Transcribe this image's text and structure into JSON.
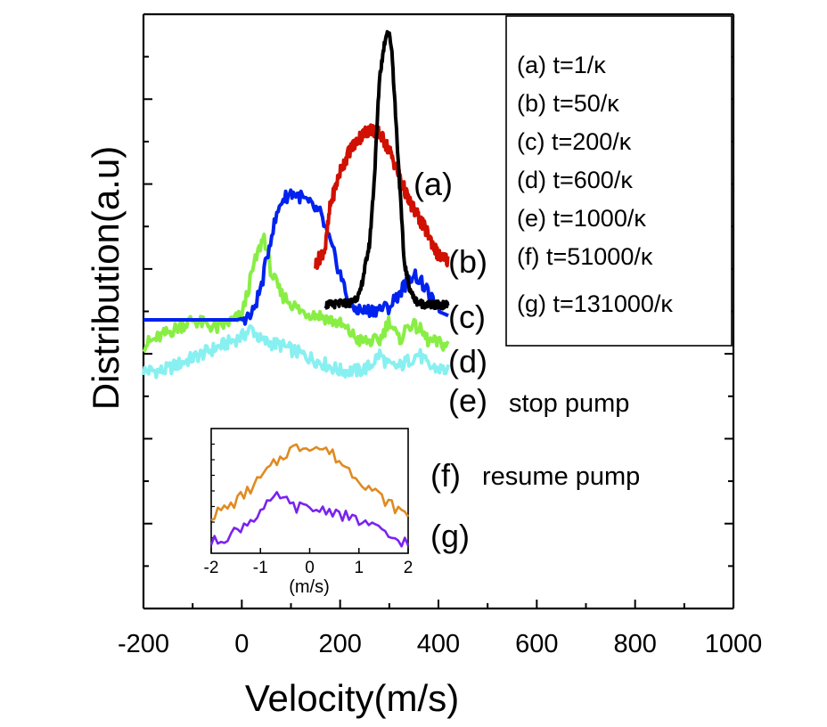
{
  "chart_data": {
    "type": "line",
    "title": "",
    "xlabel": "Velocity(m/s)",
    "ylabel": "Distribution(a.u)",
    "xlim": [
      -200,
      1000
    ],
    "xticks": [
      "-200",
      "0",
      "200",
      "400",
      "600",
      "800",
      "1000"
    ],
    "ylim": [
      0,
      14
    ],
    "grid": false,
    "legend_position": "top-right",
    "legend": [
      "(a) t=1/κ",
      "(b) t=50/κ",
      "(c) t=200/κ",
      "(d) t=600/κ",
      "(e) t=1000/κ",
      "(f)  t=51000/κ",
      "(g) t=131000/κ"
    ],
    "series": [
      {
        "id": "a",
        "name": "(a) t=1/κ",
        "color": "#000000",
        "tag": "(a)",
        "x": [
          170,
          220,
          240,
          260,
          270,
          280,
          290,
          295,
          300,
          305,
          310,
          320,
          330,
          340,
          350,
          360,
          380,
          400,
          420
        ],
        "y": [
          7.15,
          7.2,
          7.4,
          8.6,
          10.2,
          12.5,
          13.3,
          13.6,
          13.5,
          13.2,
          12.2,
          10.2,
          8.2,
          7.6,
          7.3,
          7.2,
          7.15,
          7.15,
          7.15
        ]
      },
      {
        "id": "b",
        "name": "(b) t=50/κ",
        "color": "#d01000",
        "tag": "(b)",
        "x": [
          150,
          170,
          180,
          200,
          220,
          240,
          260,
          280,
          300,
          320,
          340,
          360,
          380,
          400,
          420
        ],
        "y": [
          8.1,
          8.5,
          9.5,
          10.3,
          10.8,
          11.1,
          11.3,
          11.2,
          10.8,
          10.2,
          9.6,
          9.2,
          8.8,
          8.3,
          8.2
        ]
      },
      {
        "id": "c",
        "name": "(c) t=200/κ",
        "color": "#0022ee",
        "tag": "(c)",
        "x": [
          -200,
          -10,
          20,
          40,
          60,
          80,
          100,
          120,
          140,
          160,
          180,
          200,
          220,
          250,
          300,
          330,
          350,
          370,
          400,
          420
        ],
        "y": [
          6.8,
          6.8,
          6.9,
          7.6,
          8.8,
          9.6,
          9.8,
          9.7,
          9.5,
          9.3,
          8.6,
          7.9,
          7.1,
          7.0,
          7.1,
          7.6,
          7.9,
          7.6,
          7.0,
          6.9
        ]
      },
      {
        "id": "d",
        "name": "(d) t=600/κ",
        "color": "#88ee44",
        "tag": "(d)",
        "x": [
          -200,
          -150,
          -100,
          -50,
          0,
          25,
          45,
          60,
          80,
          120,
          160,
          200,
          240,
          280,
          300,
          320,
          340,
          360,
          380,
          420
        ],
        "y": [
          6.2,
          6.5,
          6.8,
          6.6,
          6.9,
          8.1,
          8.8,
          7.9,
          7.4,
          7.0,
          6.9,
          6.7,
          6.3,
          6.3,
          6.8,
          6.3,
          6.7,
          6.6,
          6.3,
          6.2
        ]
      },
      {
        "id": "e",
        "name": "(e) t=1000/κ",
        "color": "#88f0f0",
        "tag": "(e)",
        "x": [
          -200,
          -160,
          -120,
          -80,
          -40,
          0,
          20,
          40,
          80,
          120,
          160,
          200,
          240,
          260,
          280,
          300,
          320,
          360,
          380,
          420
        ],
        "y": [
          5.6,
          5.6,
          5.8,
          6.0,
          6.2,
          6.4,
          6.6,
          6.3,
          6.2,
          6.0,
          5.8,
          5.6,
          5.6,
          5.7,
          6.0,
          5.7,
          5.7,
          6.0,
          5.7,
          5.6
        ]
      }
    ],
    "annotations": {
      "a": "(a)",
      "b": "(b)",
      "c": "(c)",
      "d": "(d)",
      "e": "(e)",
      "stop": "stop pump",
      "f": "(f)",
      "resume": "resume pump",
      "g": "(g)"
    },
    "inset": {
      "xlabel": "(m/s)",
      "xlim": [
        -2,
        2
      ],
      "xticks": [
        "-2",
        "-1",
        "0",
        "1",
        "2"
      ],
      "series": [
        {
          "id": "f",
          "name": "(f) t=51000/κ",
          "color": "#e08a20",
          "x": [
            -2,
            -1.6,
            -1.2,
            -0.8,
            -0.4,
            0,
            0.4,
            0.8,
            1.2,
            1.6,
            2
          ],
          "y": [
            0.9,
            1.15,
            1.55,
            2.05,
            2.5,
            2.6,
            2.45,
            2.0,
            1.6,
            1.2,
            0.9
          ]
        },
        {
          "id": "g",
          "name": "(g) t=131000/κ",
          "color": "#7a22ee",
          "x": [
            -2,
            -1.6,
            -1.2,
            -0.8,
            -0.6,
            -0.4,
            0,
            0.4,
            0.8,
            1.2,
            1.6,
            2
          ],
          "y": [
            0.25,
            0.45,
            0.8,
            1.2,
            1.4,
            1.15,
            1.05,
            1.05,
            0.85,
            0.7,
            0.4,
            0.25
          ]
        }
      ]
    }
  }
}
